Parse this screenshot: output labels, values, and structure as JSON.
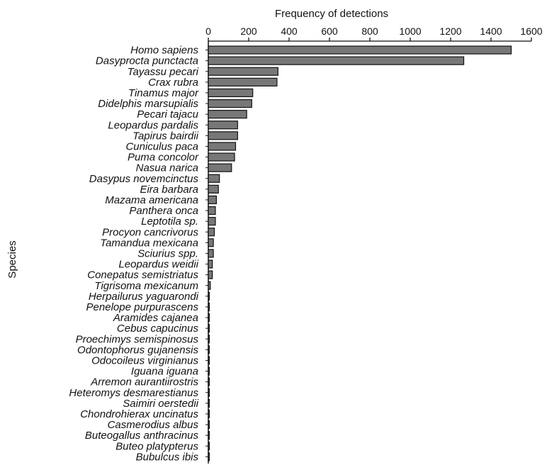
{
  "chart_data": {
    "type": "bar",
    "orientation": "horizontal",
    "title": "",
    "xlabel": "Frequency of detections",
    "ylabel": "Species",
    "xlim": [
      0,
      1600
    ],
    "xticks": [
      0,
      200,
      400,
      600,
      800,
      1000,
      1200,
      1400,
      1600
    ],
    "x_axis_position": "top",
    "grid": false,
    "bar_color": "#777777",
    "edge_color": "#111111",
    "categories": [
      "Homo sapiens",
      "Dasyprocta punctacta",
      "Tayassu pecari",
      "Crax rubra",
      "Tinamus major",
      "Didelphis marsupialis",
      "Pecari tajacu",
      "Leopardus pardalis",
      "Tapirus bairdii",
      "Cuniculus paca",
      "Puma concolor",
      "Nasua narica",
      "Dasypus novemcinctus",
      "Eira barbara",
      "Mazama americana",
      "Panthera onca",
      "Leptotila sp.",
      "Procyon cancrivorus",
      "Tamandua mexicana",
      "Sciurius spp.",
      "Leopardus weidii",
      "Conepatus semistriatus",
      "Tigrisoma mexicanum",
      "Herpailurus yaguarondi",
      "Penelope purpurascens",
      "Aramides cajanea",
      "Cebus capucinus",
      "Proechimys semispinosus",
      "Odontophorus gujanensis",
      "Odocoileus virginianus",
      "Iguana iguana",
      "Arremon aurantiirostris",
      "Heteromys desmarestianus",
      "Saimiri oerstedii",
      "Chondrohierax uncinatus",
      "Casmerodius albus",
      "Buteogallus anthracinus",
      "Buteo platypterus",
      "Bubulcus ibis"
    ],
    "values": [
      1500,
      1265,
      345,
      340,
      220,
      215,
      190,
      145,
      145,
      135,
      130,
      115,
      55,
      50,
      40,
      35,
      35,
      30,
      25,
      25,
      20,
      20,
      10,
      5,
      5,
      5,
      5,
      5,
      5,
      5,
      5,
      5,
      5,
      5,
      5,
      5,
      5,
      5,
      5
    ]
  }
}
